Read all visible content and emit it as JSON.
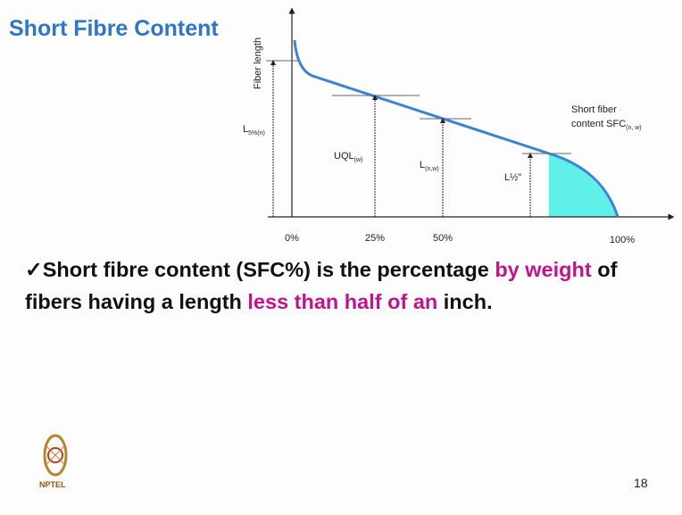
{
  "header": {
    "title": "Short Fibre Content"
  },
  "diagram": {
    "y_axis_label": "Fiber length",
    "labels": [
      {
        "main": "L",
        "sub": "5%(n)"
      },
      {
        "main": "UQL",
        "sub": "(w)"
      },
      {
        "main": "L",
        "sub": "(n,w)"
      },
      {
        "main": "L½\"",
        "sub": ""
      }
    ],
    "region_label": {
      "line1": "Short fiber",
      "line2": "content SFC",
      "sub": "(n, w)"
    },
    "x_labels": [
      "0%",
      "25%",
      "50%",
      "100%"
    ]
  },
  "bullet": {
    "mark": "✓",
    "segments": [
      {
        "text": "Short fibre content (SFC%) is the percentage ",
        "highlight": false
      },
      {
        "text": "by weight",
        "highlight": true
      },
      {
        "text": " of fibers having a length ",
        "highlight": false
      },
      {
        "text": "less than half of an",
        "highlight": true
      },
      {
        "text": " inch.",
        "highlight": false
      }
    ]
  },
  "footer": {
    "page": "18",
    "logo": "NPTEL"
  }
}
